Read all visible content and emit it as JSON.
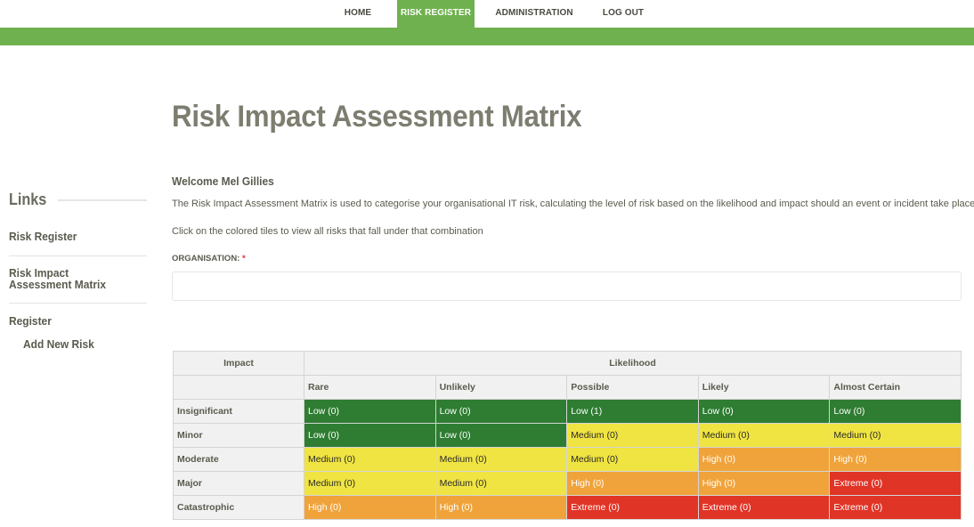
{
  "nav": {
    "home": "HOME",
    "risk_register": "RISK REGISTER",
    "administration": "ADMINISTRATION",
    "logout": "LOG OUT",
    "active": "risk_register"
  },
  "colors": {
    "brand_green": "#6fb14f",
    "low": "#2e7d32",
    "medium": "#f0e442",
    "high": "#f0a33a",
    "extreme": "#e03427"
  },
  "page": {
    "title": "Risk Impact Assessment Matrix",
    "welcome": "Welcome Mel Gillies",
    "description": "The Risk Impact Assessment Matrix is used to categorise your organisational IT risk, calculating the level of risk based on the likelihood and impact should an event or incident take place",
    "instruction": "Click on the colored tiles to view all risks that fall under that combination",
    "org_label": "ORGANISATION:",
    "org_required": "*",
    "org_value": ""
  },
  "sidebar": {
    "heading": "Links",
    "risk_register": "Risk Register",
    "matrix": "Risk Impact Assessment Matrix",
    "register": "Register",
    "add_new_risk": "Add New Risk"
  },
  "matrix": {
    "impact_header": "Impact",
    "likelihood_header": "Likelihood",
    "columns": [
      "Rare",
      "Unlikely",
      "Possible",
      "Likely",
      "Almost Certain"
    ],
    "rows": [
      {
        "label": "Insignificant",
        "cells": [
          {
            "text": "Low (0)",
            "level": "low"
          },
          {
            "text": "Low (0)",
            "level": "low"
          },
          {
            "text": "Low (1)",
            "level": "low"
          },
          {
            "text": "Low (0)",
            "level": "low"
          },
          {
            "text": "Low (0)",
            "level": "low"
          }
        ]
      },
      {
        "label": "Minor",
        "cells": [
          {
            "text": "Low (0)",
            "level": "low"
          },
          {
            "text": "Low (0)",
            "level": "low"
          },
          {
            "text": "Medium (0)",
            "level": "medium"
          },
          {
            "text": "Medium (0)",
            "level": "medium"
          },
          {
            "text": "Medium (0)",
            "level": "medium"
          }
        ]
      },
      {
        "label": "Moderate",
        "cells": [
          {
            "text": "Medium (0)",
            "level": "medium"
          },
          {
            "text": "Medium (0)",
            "level": "medium"
          },
          {
            "text": "Medium (0)",
            "level": "medium"
          },
          {
            "text": "High (0)",
            "level": "high"
          },
          {
            "text": "High (0)",
            "level": "high"
          }
        ]
      },
      {
        "label": "Major",
        "cells": [
          {
            "text": "Medium (0)",
            "level": "medium"
          },
          {
            "text": "Medium (0)",
            "level": "medium"
          },
          {
            "text": "High (0)",
            "level": "high"
          },
          {
            "text": "High (0)",
            "level": "high"
          },
          {
            "text": "Extreme (0)",
            "level": "extreme"
          }
        ]
      },
      {
        "label": "Catastrophic",
        "cells": [
          {
            "text": "High (0)",
            "level": "high"
          },
          {
            "text": "High (0)",
            "level": "high"
          },
          {
            "text": "Extreme (0)",
            "level": "extreme"
          },
          {
            "text": "Extreme (0)",
            "level": "extreme"
          },
          {
            "text": "Extreme (0)",
            "level": "extreme"
          }
        ]
      }
    ]
  }
}
